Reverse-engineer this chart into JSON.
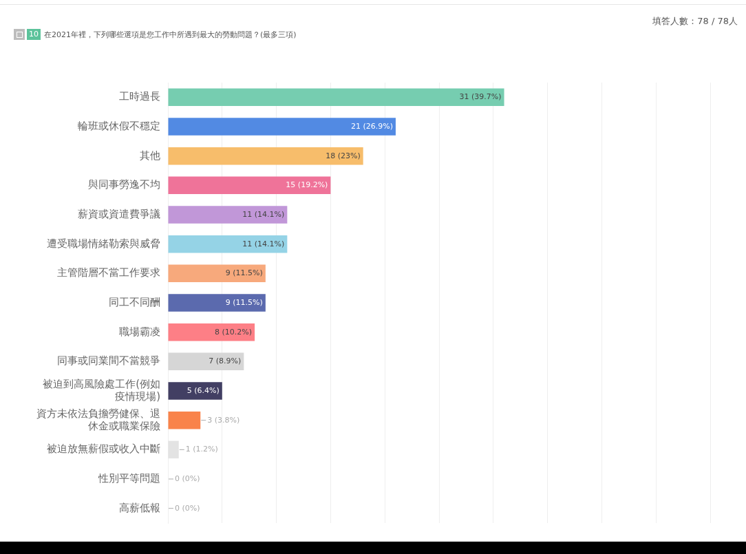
{
  "chart_data": {
    "type": "bar",
    "orientation": "horizontal",
    "title": "在2021年裡，下列哪些選項是您工作中所遇到最大的勞動問題？(最多三項)",
    "annotations": [
      "10",
      "填答人數：78 / 78人"
    ],
    "categories": [
      "工時過長",
      "輪班或休假不穩定",
      "其他",
      "與同事勞逸不均",
      "薪資或資遣費爭議",
      "遭受職場情緒勒索與威脅",
      "主管階層不當工作要求",
      "同工不同酬",
      "職場霸凌",
      "同事或同業間不當競爭",
      "被迫到高風險處工作(例如疫情現場)",
      "資方未依法負擔勞健保、退休金或職業保險",
      "被迫放無薪假或收入中斷",
      "性別平等問題",
      "高薪低報"
    ],
    "values": [
      31,
      21,
      18,
      15,
      11,
      11,
      9,
      9,
      8,
      7,
      5,
      3,
      1,
      0,
      0
    ],
    "value_labels": [
      "31 (39.7%)",
      "21 (26.9%)",
      "18 (23%)",
      "15 (19.2%)",
      "11 (14.1%)",
      "11 (14.1%)",
      "9 (11.5%)",
      "9 (11.5%)",
      "8 (10.2%)",
      "7 (8.9%)",
      "5 (6.4%)",
      "3 (3.8%)",
      "1 (1.2%)",
      "0 (0%)",
      "0 (0%)"
    ],
    "colors": [
      "#76cdb0",
      "#528ae3",
      "#f7bd6b",
      "#ef7399",
      "#c197d8",
      "#95d3e6",
      "#f7a97c",
      "#5b6aae",
      "#fd7f86",
      "#d6d6d6",
      "#423f63",
      "#f9834a",
      "#e3e3e3",
      "#e3e3e3",
      "#e3e3e3"
    ],
    "xlim": [
      0,
      50
    ],
    "xticks": [
      {
        "value": 0,
        "label": null
      },
      {
        "value": 5,
        "label": null
      },
      {
        "value": 10,
        "label": null
      },
      {
        "value": 15,
        "label": null
      },
      {
        "value": 20,
        "label": null
      },
      {
        "value": 25,
        "label": null
      },
      {
        "value": 30,
        "label": null
      },
      {
        "value": 35,
        "label": null
      },
      {
        "value": 40,
        "label": null
      },
      {
        "value": 45,
        "label": null
      },
      {
        "value": 50,
        "label": null
      }
    ],
    "grid": "x",
    "tick_labels": "y",
    "legend": false
  }
}
